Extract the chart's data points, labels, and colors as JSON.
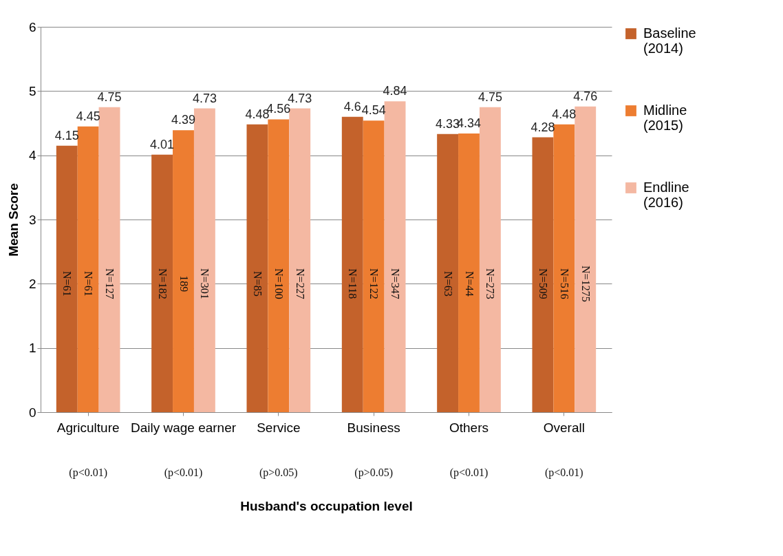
{
  "chart_data": {
    "type": "bar",
    "xlabel": "Husband's occupation level",
    "ylabel": "Mean Score",
    "categories": [
      "Agriculture",
      "Daily wage earner",
      "Service",
      "Business",
      "Others",
      "Overall"
    ],
    "series": [
      {
        "name": "Baseline (2014)",
        "color": "#c4622b",
        "values": [
          4.15,
          4.01,
          4.48,
          4.6,
          4.33,
          4.28
        ]
      },
      {
        "name": "Midline (2015)",
        "color": "#ed7d31",
        "values": [
          4.45,
          4.39,
          4.56,
          4.54,
          4.34,
          4.48
        ]
      },
      {
        "name": "Endline (2016)",
        "color": "#f4b8a2",
        "values": [
          4.75,
          4.73,
          4.73,
          4.84,
          4.75,
          4.76
        ]
      }
    ],
    "ylim": [
      0,
      6
    ],
    "yticks": [
      0,
      1,
      2,
      3,
      4,
      5,
      6
    ],
    "grid": "y",
    "legend": "right",
    "data_labels": true,
    "annotations": [
      "N=61",
      "N=61",
      "N=127",
      "N=182",
      "189",
      "N=301",
      "N=85",
      "N=100",
      "N=227",
      "N=118",
      "N=122",
      "N=347",
      "N=63",
      "N=44",
      "N=273",
      "N=509",
      "N=516",
      "N=1275",
      "(p<0.01)",
      "(p<0.01)",
      "(p>0.05)",
      "(p>0.05)",
      "(p<0.01)",
      "(p<0.01)"
    ]
  }
}
